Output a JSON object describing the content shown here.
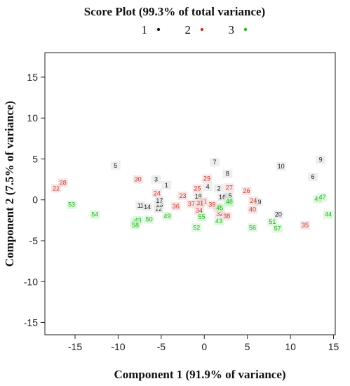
{
  "chart_data": {
    "type": "scatter",
    "title": "Score Plot (99.3% of total variance)",
    "xlabel": "Component 1 (91.9% of variance)",
    "ylabel": "Component 2 (7.5% of variance)",
    "xlim": [
      -18.5,
      15.2
    ],
    "ylim": [
      -16.5,
      18.0
    ],
    "xticks": [
      -15,
      -10,
      -5,
      0,
      5,
      10,
      15
    ],
    "yticks": [
      -15,
      -10,
      -5,
      0,
      5,
      10,
      15
    ],
    "xtick_labels": [
      "-15",
      "-10",
      "-5",
      "0",
      "5",
      "10",
      "15"
    ],
    "ytick_labels": [
      "-15",
      "-10",
      "-5",
      "0",
      "5",
      "10",
      "15"
    ],
    "grid": false,
    "legend_position": "top",
    "series": [
      {
        "name": "1",
        "color": "#1a1a1a",
        "points": [
          {
            "label": "1",
            "x": -4.4,
            "y": 1.8
          },
          {
            "label": "2",
            "x": 1.7,
            "y": 1.4
          },
          {
            "label": "3",
            "x": -5.6,
            "y": 2.5
          },
          {
            "label": "4",
            "x": 0.4,
            "y": 1.6
          },
          {
            "label": "5",
            "x": -10.3,
            "y": 4.2
          },
          {
            "label": "6",
            "x": 12.6,
            "y": 2.8
          },
          {
            "label": "7",
            "x": 1.2,
            "y": 4.6
          },
          {
            "label": "8",
            "x": 2.7,
            "y": 3.2
          },
          {
            "label": "9",
            "x": 13.5,
            "y": 4.9
          },
          {
            "label": "10",
            "x": 8.9,
            "y": 4.1
          },
          {
            "label": "11",
            "x": -7.4,
            "y": -0.7
          },
          {
            "label": "12",
            "x": -5.3,
            "y": -1.1
          },
          {
            "label": "13",
            "x": -5.2,
            "y": -0.6
          },
          {
            "label": "14",
            "x": -6.6,
            "y": -0.9
          },
          {
            "label": "15",
            "x": 2.8,
            "y": 0.5
          },
          {
            "label": "16",
            "x": 2.1,
            "y": 0.3
          },
          {
            "label": "17",
            "x": -5.2,
            "y": -0.1
          },
          {
            "label": "18",
            "x": -0.7,
            "y": 0.4
          },
          {
            "label": "19",
            "x": 6.2,
            "y": -0.3
          },
          {
            "label": "20",
            "x": 8.6,
            "y": -1.8
          }
        ]
      },
      {
        "name": "2",
        "color": "#c0392b",
        "points": [
          {
            "label": "21",
            "x": -0.1,
            "y": -0.2
          },
          {
            "label": "22",
            "x": -17.2,
            "y": 1.4
          },
          {
            "label": "23",
            "x": -2.5,
            "y": 0.5
          },
          {
            "label": "24",
            "x": -5.5,
            "y": 0.8
          },
          {
            "label": "24",
            "x": 5.7,
            "y": -0.1
          },
          {
            "label": "25",
            "x": -0.8,
            "y": 1.4
          },
          {
            "label": "26",
            "x": 4.9,
            "y": 1.1
          },
          {
            "label": "27",
            "x": 2.9,
            "y": 1.5
          },
          {
            "label": "28",
            "x": -16.4,
            "y": 2.1
          },
          {
            "label": "29",
            "x": 0.3,
            "y": 2.6
          },
          {
            "label": "30",
            "x": -7.7,
            "y": 2.5
          },
          {
            "label": "31",
            "x": -0.5,
            "y": -0.4
          },
          {
            "label": "32",
            "x": 1.8,
            "y": -1.7
          },
          {
            "label": "33",
            "x": 1.5,
            "y": -0.9
          },
          {
            "label": "34",
            "x": -0.6,
            "y": -1.3
          },
          {
            "label": "35",
            "x": 11.7,
            "y": -3.1
          },
          {
            "label": "36",
            "x": -3.3,
            "y": -0.8
          },
          {
            "label": "37",
            "x": -1.5,
            "y": -0.5
          },
          {
            "label": "38",
            "x": 2.6,
            "y": -2.0
          },
          {
            "label": "39",
            "x": 0.9,
            "y": -0.6
          },
          {
            "label": "40",
            "x": 5.6,
            "y": -1.2
          }
        ]
      },
      {
        "name": "3",
        "color": "#22b022",
        "points": [
          {
            "label": "41",
            "x": 13.2,
            "y": 0.1
          },
          {
            "label": "42",
            "x": -8.0,
            "y": -2.7
          },
          {
            "label": "43",
            "x": -7.7,
            "y": -2.5
          },
          {
            "label": "43",
            "x": 1.7,
            "y": -2.6
          },
          {
            "label": "44",
            "x": 14.4,
            "y": -1.8
          },
          {
            "label": "45",
            "x": 1.8,
            "y": -1.0
          },
          {
            "label": "46",
            "x": 2.8,
            "y": -0.4
          },
          {
            "label": "47",
            "x": 13.7,
            "y": 0.3
          },
          {
            "label": "48",
            "x": 2.9,
            "y": -0.2
          },
          {
            "label": "49",
            "x": -4.3,
            "y": -2.0
          },
          {
            "label": "50",
            "x": -6.4,
            "y": -2.4
          },
          {
            "label": "51",
            "x": 7.9,
            "y": -2.7
          },
          {
            "label": "52",
            "x": -0.9,
            "y": -3.4
          },
          {
            "label": "53",
            "x": -15.4,
            "y": -0.6
          },
          {
            "label": "54",
            "x": -12.7,
            "y": -1.8
          },
          {
            "label": "55",
            "x": -0.3,
            "y": -2.1
          },
          {
            "label": "56",
            "x": 5.6,
            "y": -3.4
          },
          {
            "label": "57",
            "x": 8.5,
            "y": -3.5
          },
          {
            "label": "58",
            "x": -8.0,
            "y": -3.1
          }
        ]
      }
    ]
  }
}
